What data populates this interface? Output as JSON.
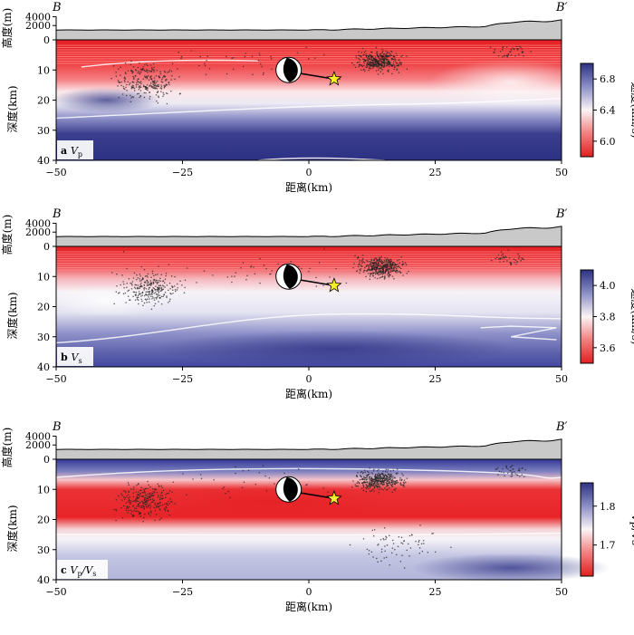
{
  "chart_data": [
    {
      "type": "heatmap",
      "panel_label": "a",
      "panel_var": "V",
      "panel_sub": "p",
      "profile_start": "B",
      "profile_end": "B′",
      "xlabel": "距离(km)",
      "ylabel_depth": "深度(km)",
      "ylabel_elev": "高度(m)",
      "xlim": [
        -50,
        50
      ],
      "xticks": [
        -50,
        -25,
        0,
        25,
        50
      ],
      "depth_lim": [
        0,
        40
      ],
      "depth_ticks": [
        0,
        10,
        20,
        30,
        40
      ],
      "elev_ticks": [
        2000,
        4000
      ],
      "colorbar": {
        "label": "速度(km/s)",
        "min": 5.8,
        "max": 7.0,
        "ticks": [
          6.0,
          6.4,
          6.8
        ],
        "colors": [
          "#d7191c",
          "#ffffff",
          "#2c2f82"
        ]
      },
      "event_star": {
        "x": 5,
        "depth": 13
      },
      "focal_mechanism": {
        "x": -4,
        "depth": 10
      }
    },
    {
      "type": "heatmap",
      "panel_label": "b",
      "panel_var": "V",
      "panel_sub": "s",
      "profile_start": "B",
      "profile_end": "B′",
      "xlabel": "距离(km)",
      "ylabel_depth": "深度(km)",
      "ylabel_elev": "高度(m)",
      "xlim": [
        -50,
        50
      ],
      "xticks": [
        -50,
        -25,
        0,
        25,
        50
      ],
      "depth_lim": [
        0,
        40
      ],
      "depth_ticks": [
        0,
        10,
        20,
        30,
        40
      ],
      "elev_ticks": [
        2000,
        4000
      ],
      "colorbar": {
        "label": "速度(km/s)",
        "min": 3.5,
        "max": 4.1,
        "ticks": [
          3.6,
          3.8,
          4.0
        ],
        "colors": [
          "#d7191c",
          "#ffffff",
          "#2c2f82"
        ]
      },
      "event_star": {
        "x": 5,
        "depth": 13
      },
      "focal_mechanism": {
        "x": -4,
        "depth": 10
      }
    },
    {
      "type": "heatmap",
      "panel_label": "c",
      "panel_var": "V",
      "panel_sub": "p",
      "panel_suffix": "/V",
      "panel_sub2": "s",
      "profile_start": "B",
      "profile_end": "B′",
      "xlabel": "距离(km)",
      "ylabel_depth": "深度(km)",
      "ylabel_elev": "高度(m)",
      "xlim": [
        -50,
        50
      ],
      "xticks": [
        -50,
        -25,
        0,
        25,
        50
      ],
      "depth_lim": [
        0,
        40
      ],
      "depth_ticks": [
        0,
        10,
        20,
        30,
        40
      ],
      "elev_ticks": [
        2000,
        4000
      ],
      "colorbar": {
        "label": "Vp/Vs",
        "min": 1.62,
        "max": 1.86,
        "ticks": [
          1.7,
          1.8
        ],
        "colors": [
          "#d7191c",
          "#ffffff",
          "#2c2f82"
        ]
      },
      "event_star": {
        "x": 5,
        "depth": 13
      },
      "focal_mechanism": {
        "x": -4,
        "depth": 10
      }
    }
  ]
}
